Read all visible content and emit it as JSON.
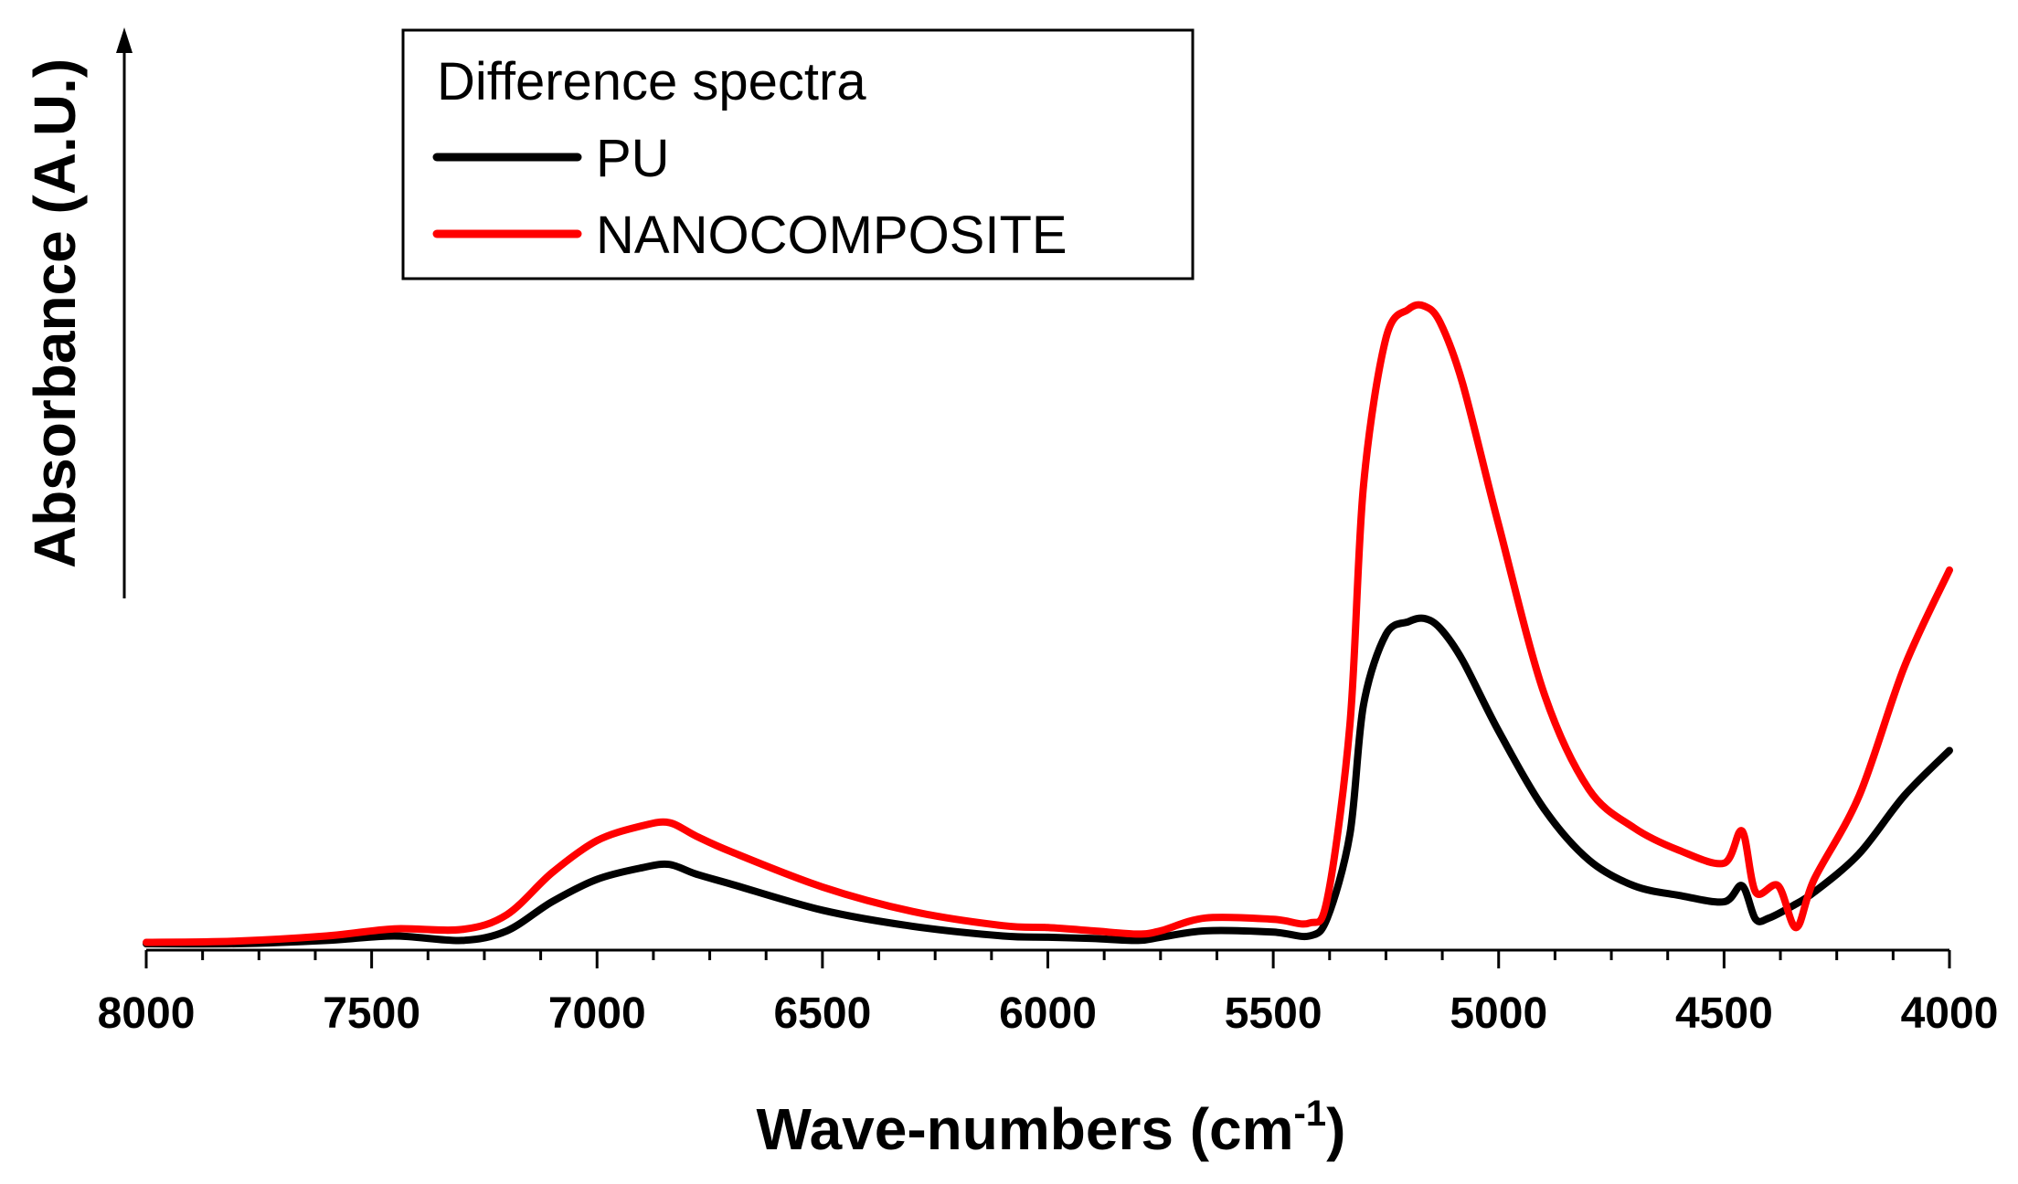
{
  "chart_data": {
    "type": "line",
    "xlabel": "Wave-numbers (cm",
    "xlabel_superscript": "-1",
    "xlabel_suffix": ")",
    "ylabel": "Absorbance (A.U.)",
    "xlim": [
      8000,
      4000
    ],
    "ylim": [
      0,
      1.4
    ],
    "x_axis_reversed": true,
    "x_ticks": [
      "8000",
      "7500",
      "7000",
      "6500",
      "6000",
      "5500",
      "5000",
      "4500",
      "4000"
    ],
    "x_tick_values": [
      8000,
      7500,
      7000,
      6500,
      6000,
      5500,
      5000,
      4500,
      4000
    ],
    "y_ticks_shown": false,
    "grid": false,
    "legend": {
      "title": "Difference spectra",
      "position": "top-left",
      "entries": [
        "PU",
        "NANOCOMPOSITE"
      ]
    },
    "series": [
      {
        "name": "PU",
        "color": "#000000",
        "points": [
          [
            8000,
            0.01
          ],
          [
            7800,
            0.01
          ],
          [
            7600,
            0.015
          ],
          [
            7450,
            0.022
          ],
          [
            7300,
            0.015
          ],
          [
            7200,
            0.03
          ],
          [
            7100,
            0.075
          ],
          [
            7000,
            0.11
          ],
          [
            6900,
            0.128
          ],
          [
            6840,
            0.133
          ],
          [
            6780,
            0.118
          ],
          [
            6700,
            0.102
          ],
          [
            6500,
            0.062
          ],
          [
            6300,
            0.037
          ],
          [
            6100,
            0.022
          ],
          [
            6000,
            0.02
          ],
          [
            5900,
            0.018
          ],
          [
            5800,
            0.015
          ],
          [
            5750,
            0.02
          ],
          [
            5650,
            0.03
          ],
          [
            5500,
            0.028
          ],
          [
            5420,
            0.022
          ],
          [
            5380,
            0.05
          ],
          [
            5330,
            0.18
          ],
          [
            5300,
            0.38
          ],
          [
            5250,
            0.49
          ],
          [
            5200,
            0.51
          ],
          [
            5165,
            0.515
          ],
          [
            5130,
            0.5
          ],
          [
            5080,
            0.45
          ],
          [
            5000,
            0.34
          ],
          [
            4900,
            0.22
          ],
          [
            4800,
            0.14
          ],
          [
            4700,
            0.1
          ],
          [
            4600,
            0.085
          ],
          [
            4500,
            0.075
          ],
          [
            4460,
            0.1
          ],
          [
            4430,
            0.048
          ],
          [
            4400,
            0.05
          ],
          [
            4350,
            0.068
          ],
          [
            4300,
            0.09
          ],
          [
            4200,
            0.15
          ],
          [
            4100,
            0.24
          ],
          [
            4000,
            0.31
          ]
        ]
      },
      {
        "name": "NANOCOMPOSITE",
        "color": "#ff0000",
        "points": [
          [
            8000,
            0.012
          ],
          [
            7800,
            0.014
          ],
          [
            7600,
            0.022
          ],
          [
            7450,
            0.033
          ],
          [
            7300,
            0.032
          ],
          [
            7200,
            0.055
          ],
          [
            7100,
            0.12
          ],
          [
            7000,
            0.17
          ],
          [
            6900,
            0.193
          ],
          [
            6840,
            0.198
          ],
          [
            6780,
            0.177
          ],
          [
            6700,
            0.152
          ],
          [
            6500,
            0.098
          ],
          [
            6300,
            0.06
          ],
          [
            6100,
            0.038
          ],
          [
            6000,
            0.035
          ],
          [
            5900,
            0.03
          ],
          [
            5800,
            0.025
          ],
          [
            5750,
            0.03
          ],
          [
            5650,
            0.05
          ],
          [
            5500,
            0.048
          ],
          [
            5420,
            0.042
          ],
          [
            5380,
            0.08
          ],
          [
            5330,
            0.35
          ],
          [
            5300,
            0.72
          ],
          [
            5250,
            0.95
          ],
          [
            5200,
            0.995
          ],
          [
            5165,
            1.0
          ],
          [
            5130,
            0.975
          ],
          [
            5080,
            0.88
          ],
          [
            5000,
            0.66
          ],
          [
            4900,
            0.4
          ],
          [
            4800,
            0.25
          ],
          [
            4700,
            0.19
          ],
          [
            4600,
            0.155
          ],
          [
            4500,
            0.135
          ],
          [
            4460,
            0.185
          ],
          [
            4430,
            0.09
          ],
          [
            4380,
            0.1
          ],
          [
            4340,
            0.035
          ],
          [
            4300,
            0.11
          ],
          [
            4200,
            0.24
          ],
          [
            4100,
            0.44
          ],
          [
            4000,
            0.59
          ]
        ]
      }
    ]
  }
}
